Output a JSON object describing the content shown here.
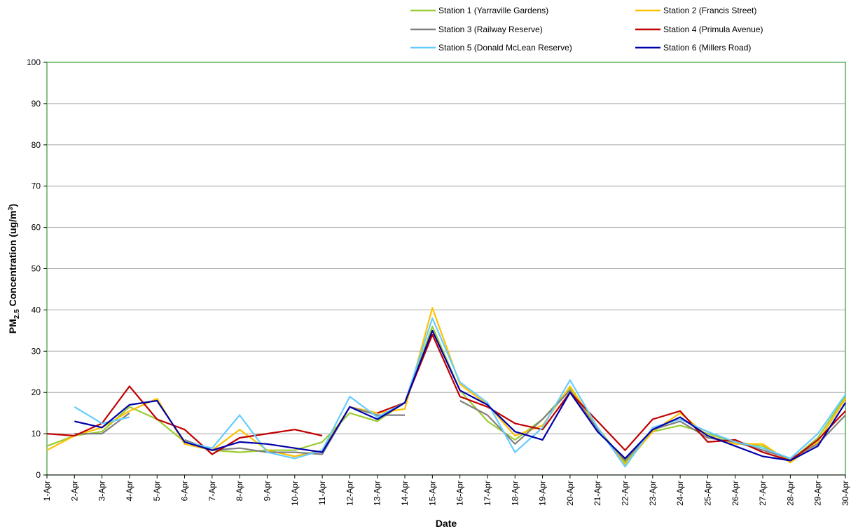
{
  "chart_data": {
    "type": "line",
    "xlabel": "Date",
    "ylabel": "PM2.5 Concentration (ug/m3)",
    "ylabel_parts": {
      "pre": "PM",
      "sub": "2.5",
      "mid": " Concentration (ug/m",
      "sup": "3",
      "post": ")"
    },
    "ylim": [
      0,
      100
    ],
    "yticks": [
      0,
      10,
      20,
      30,
      40,
      50,
      60,
      70,
      80,
      90,
      100
    ],
    "grid": true,
    "legend_position": "top-right",
    "categories": [
      "1-Apr",
      "2-Apr",
      "3-Apr",
      "4-Apr",
      "5-Apr",
      "6-Apr",
      "7-Apr",
      "8-Apr",
      "9-Apr",
      "10-Apr",
      "11-Apr",
      "12-Apr",
      "13-Apr",
      "14-Apr",
      "15-Apr",
      "16-Apr",
      "17-Apr",
      "18-Apr",
      "19-Apr",
      "20-Apr",
      "21-Apr",
      "22-Apr",
      "23-Apr",
      "24-Apr",
      "25-Apr",
      "26-Apr",
      "27-Apr",
      "28-Apr",
      "29-Apr",
      "30-Apr"
    ],
    "series": [
      {
        "name": "Station 1 (Yarraville Gardens)",
        "color": "#9ACD32",
        "values": [
          7,
          9.5,
          10.5,
          16.5,
          13.5,
          8,
          6,
          5.5,
          6,
          6,
          8,
          15,
          13,
          17.5,
          36,
          20.5,
          13,
          8.5,
          13.5,
          21,
          11.5,
          3,
          10.5,
          12,
          10,
          8,
          7,
          3.5,
          9,
          19
        ]
      },
      {
        "name": "Station 2 (Francis Street)",
        "color": "#FFC000",
        "values": [
          6,
          9.5,
          11.5,
          15.5,
          18.5,
          7.5,
          6,
          11,
          6,
          4.5,
          6,
          16.5,
          15,
          16,
          40.5,
          22,
          17,
          9.5,
          12,
          21.5,
          11.5,
          2.5,
          10.5,
          15,
          9.5,
          7.5,
          7.5,
          3,
          8,
          18.5
        ]
      },
      {
        "name": "Station 3 (Railway Reserve)",
        "color": "#808080",
        "values": [
          null,
          10,
          10,
          15,
          null,
          8.5,
          6,
          6.5,
          5.5,
          5.5,
          5,
          16.5,
          14.5,
          14.5,
          null,
          18,
          14.5,
          7.5,
          13.5,
          20.5,
          11,
          3.5,
          11,
          13,
          9,
          8,
          6,
          4,
          7.5,
          14.5
        ]
      },
      {
        "name": "Station 4 (Primula Avenue)",
        "color": "#C00000",
        "values": [
          10,
          9.5,
          12.5,
          21.5,
          13.5,
          11,
          5,
          9,
          10,
          11,
          9.5,
          null,
          15,
          17.5,
          34,
          19,
          16.5,
          12.5,
          11,
          20,
          13,
          6,
          13.5,
          15.5,
          8,
          8.5,
          5.5,
          3.5,
          8.5,
          15.5
        ]
      },
      {
        "name": "Station 5 (Donald McLean Reserve)",
        "color": "#66CCFF",
        "values": [
          null,
          16.5,
          12.5,
          14,
          null,
          8,
          6.5,
          14.5,
          5.5,
          4,
          6,
          19,
          14,
          17.5,
          38,
          22.5,
          17.5,
          5.5,
          11.5,
          23,
          11.5,
          2,
          11.5,
          13.5,
          10.5,
          8,
          6.5,
          4,
          10,
          19.5
        ]
      },
      {
        "name": "Station 6 (Millers Road)",
        "color": "#0000AA",
        "values": [
          null,
          13,
          11.5,
          17,
          18,
          8,
          6,
          8,
          7.5,
          6.5,
          5.5,
          16.5,
          13.5,
          17.5,
          35,
          20.5,
          17,
          10.5,
          8.5,
          20,
          10.5,
          4,
          11,
          14,
          9.5,
          7,
          4.5,
          3.5,
          7,
          17.5
        ]
      }
    ]
  }
}
